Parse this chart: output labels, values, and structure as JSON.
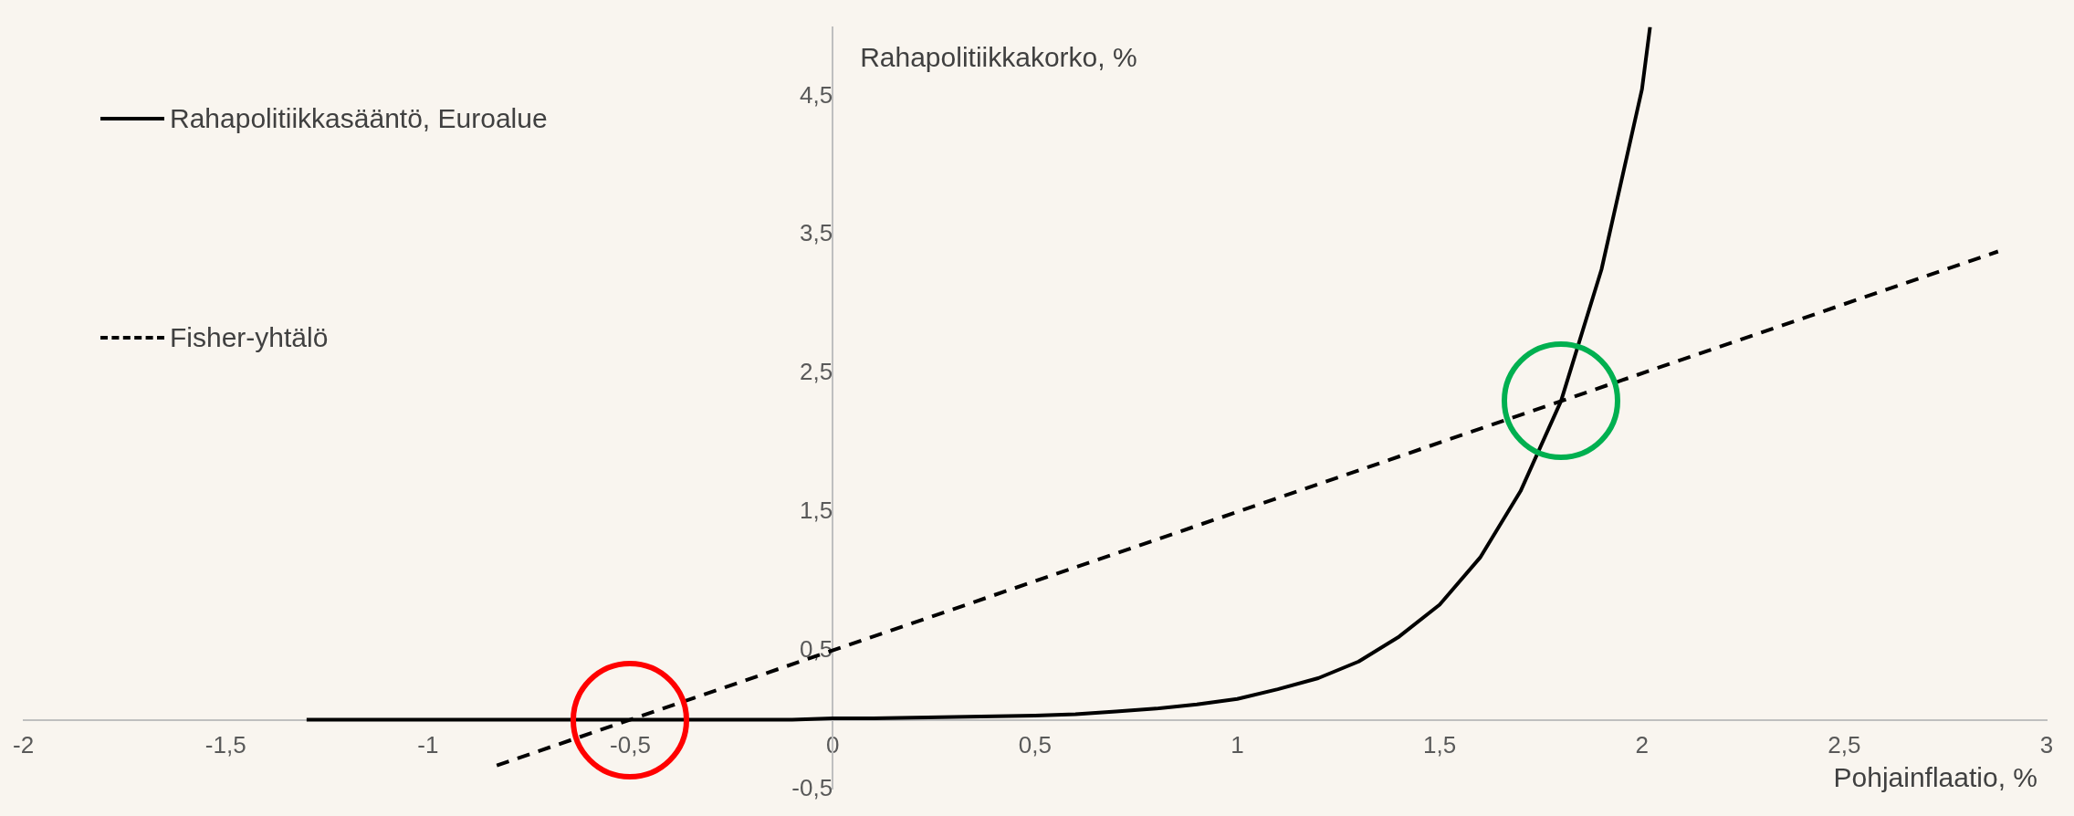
{
  "chart_data": {
    "type": "line",
    "xlabel": "Pohjainflaatio, %",
    "ylabel": "Rahapolitiikkakorko, %",
    "xlim": [
      -2,
      3
    ],
    "xticks": [
      -2,
      {
        "value": -1.5,
        "label": "-1,5"
      },
      -1,
      {
        "value": -0.5,
        "label": "-0,5"
      },
      0,
      {
        "value": 0.5,
        "label": "0,5"
      },
      1,
      {
        "value": 1.5,
        "label": "1,5"
      },
      2,
      {
        "value": 2.5,
        "label": "2,5"
      },
      3
    ],
    "ylim": [
      -0.5,
      5
    ],
    "yticks": [
      {
        "value": -0.5,
        "label": "-0,5"
      },
      {
        "value": 0.5,
        "label": "0,5"
      },
      {
        "value": 1.5,
        "label": "1,5"
      },
      {
        "value": 2.5,
        "label": "2,5"
      },
      {
        "value": 3.5,
        "label": "3,5"
      },
      {
        "value": 4.5,
        "label": "4,5"
      }
    ],
    "grid": false,
    "legend": "top left",
    "marker": "none",
    "series": [
      {
        "name": "Rahapolitiikkasääntö, Euroalue",
        "color": "#000000",
        "line_style": "solid",
        "x": [
          -1.3,
          -1.2,
          -1.1,
          -1.0,
          -0.9,
          -0.8,
          -0.7,
          -0.6,
          -0.5,
          -0.4,
          -0.3,
          -0.2,
          -0.1,
          0.0,
          0.1,
          0.2,
          0.3,
          0.4,
          0.5,
          0.6,
          0.7,
          0.8,
          0.9,
          1.0,
          1.1,
          1.2,
          1.3,
          1.4,
          1.5,
          1.6,
          1.7,
          1.8,
          1.9,
          2.0,
          2.02
        ],
        "values": [
          0,
          0,
          0,
          0,
          0,
          0,
          0,
          0,
          0,
          0,
          0,
          0,
          0,
          0.01,
          0.01,
          0.015,
          0.02,
          0.025,
          0.03,
          0.04,
          0.06,
          0.08,
          0.11,
          0.15,
          0.22,
          0.3,
          0.42,
          0.6,
          0.83,
          1.17,
          1.65,
          2.3,
          3.25,
          4.55,
          5.0
        ]
      },
      {
        "name": "Fisher-yhtälö",
        "color": "#000000",
        "line_style": "dashed",
        "x": [
          -0.83,
          2.88
        ],
        "values": [
          -0.33,
          3.38
        ]
      }
    ]
  }
}
